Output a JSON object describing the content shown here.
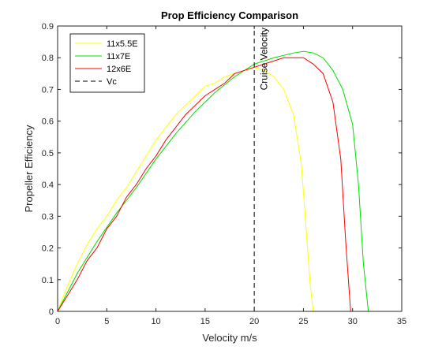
{
  "chart_data": {
    "type": "line",
    "title": "Prop Efficiency Comparison",
    "xlabel": "Velocity m/s",
    "ylabel": "Propeller Efficiency",
    "xlim": [
      0,
      35
    ],
    "ylim": [
      0,
      0.9
    ],
    "xticks": [
      0,
      5,
      10,
      15,
      20,
      25,
      30,
      35
    ],
    "yticks": [
      0,
      0.1,
      0.2,
      0.3,
      0.4,
      0.5,
      0.6,
      0.7,
      0.8,
      0.9
    ],
    "xtick_labels": [
      "0",
      "5",
      "10",
      "15",
      "20",
      "25",
      "30",
      "35"
    ],
    "ytick_labels": [
      "0",
      "0.1",
      "0.2",
      "0.3",
      "0.4",
      "0.5",
      "0.6",
      "0.7",
      "0.8",
      "0.9"
    ],
    "grid": false,
    "legend_position": "top-left",
    "series": [
      {
        "name": "11x5.5E",
        "color": "#ffff00",
        "line_style": "solid",
        "x": [
          0,
          1,
          2,
          3,
          4,
          5,
          6,
          7,
          8,
          9,
          10,
          11,
          12,
          13,
          14,
          15,
          16,
          17,
          18,
          19,
          20,
          21,
          22,
          23,
          24,
          24.8,
          25.3,
          25.7,
          26.0
        ],
        "y": [
          0,
          0.08,
          0.15,
          0.21,
          0.26,
          0.3,
          0.35,
          0.39,
          0.44,
          0.49,
          0.54,
          0.58,
          0.62,
          0.65,
          0.68,
          0.71,
          0.72,
          0.74,
          0.75,
          0.76,
          0.77,
          0.76,
          0.74,
          0.7,
          0.62,
          0.46,
          0.25,
          0.08,
          0.0
        ]
      },
      {
        "name": "11x7E",
        "color": "#00dd00",
        "line_style": "solid",
        "x": [
          0,
          2,
          4,
          6,
          8,
          10,
          12,
          14,
          16,
          18,
          20,
          22,
          24,
          25,
          26,
          27,
          28,
          29,
          30,
          30.6,
          31.1,
          31.6
        ],
        "y": [
          0,
          0.12,
          0.22,
          0.31,
          0.39,
          0.48,
          0.56,
          0.63,
          0.69,
          0.74,
          0.78,
          0.8,
          0.815,
          0.82,
          0.815,
          0.8,
          0.76,
          0.7,
          0.59,
          0.4,
          0.15,
          0.0
        ]
      },
      {
        "name": "12x6E",
        "color": "#ff0000",
        "line_style": "solid",
        "x": [
          0,
          1,
          2,
          3,
          4,
          5,
          6,
          7,
          8,
          9,
          10,
          11,
          12,
          13,
          14,
          15,
          16,
          17,
          18,
          19,
          20,
          21,
          22,
          23,
          24,
          25,
          26,
          27,
          28,
          28.8,
          29.3,
          29.8
        ],
        "y": [
          0,
          0.05,
          0.1,
          0.16,
          0.2,
          0.26,
          0.3,
          0.36,
          0.4,
          0.45,
          0.49,
          0.54,
          0.58,
          0.62,
          0.65,
          0.68,
          0.7,
          0.72,
          0.75,
          0.76,
          0.77,
          0.78,
          0.79,
          0.8,
          0.8,
          0.8,
          0.78,
          0.75,
          0.66,
          0.48,
          0.22,
          0.0
        ]
      },
      {
        "name": "Vc",
        "color": "#000000",
        "line_style": "dashed",
        "x": [
          20,
          20
        ],
        "y": [
          0,
          0.9
        ]
      }
    ],
    "annotations": [
      {
        "text": "Cruise Velocity",
        "x": 20.6,
        "y": 0.895,
        "rotation": -90
      }
    ]
  }
}
